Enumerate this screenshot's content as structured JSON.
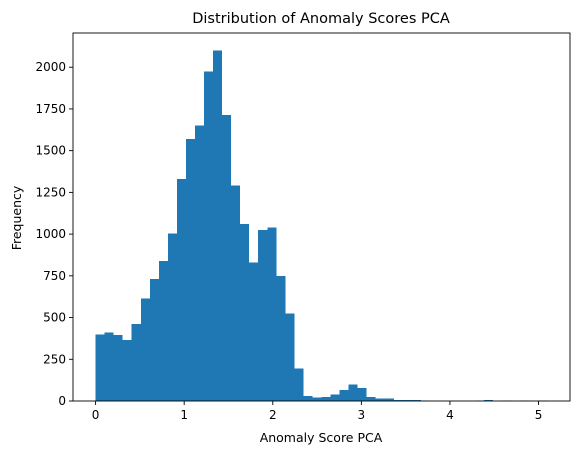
{
  "chart_data": {
    "type": "bar",
    "title": "Distribution of Anomaly Scores PCA",
    "xlabel": "Anomaly Score PCA",
    "ylabel": "Frequency",
    "xlim": [
      -0.255,
      5.355
    ],
    "ylim": [
      0,
      2205
    ],
    "xticks": [
      0,
      1,
      2,
      3,
      4,
      5
    ],
    "yticks": [
      0,
      250,
      500,
      750,
      1000,
      1250,
      1500,
      1750,
      2000
    ],
    "bar_color": "#1f77b4",
    "grid": false,
    "bins": {
      "start": 0.0,
      "width": 0.102,
      "counts": [
        398,
        410,
        395,
        365,
        460,
        615,
        730,
        840,
        1005,
        1330,
        1570,
        1650,
        1975,
        2100,
        1715,
        1290,
        1060,
        830,
        1025,
        1040,
        750,
        525,
        195,
        30,
        20,
        25,
        40,
        65,
        100,
        78,
        25,
        15,
        15,
        5,
        5,
        5,
        3,
        0,
        0,
        0,
        0,
        0,
        3,
        5,
        0,
        3,
        0,
        3,
        0,
        3
      ]
    }
  }
}
